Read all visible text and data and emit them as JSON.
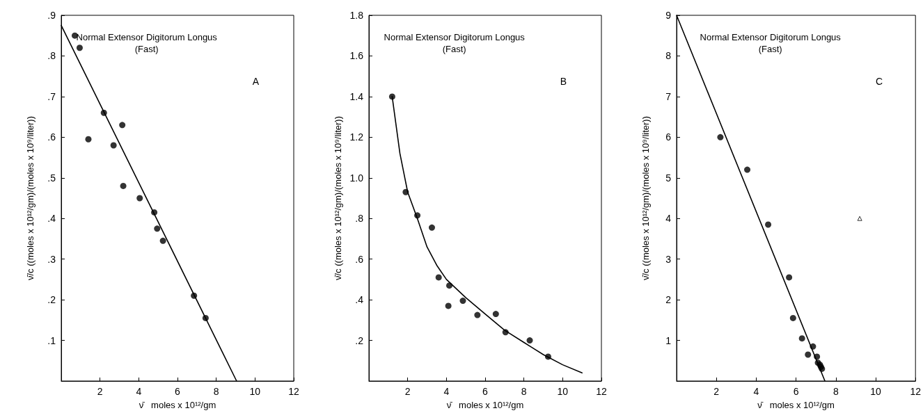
{
  "chart_data": [
    {
      "type": "scatter",
      "title": "Normal Extensor Digitorum Longus",
      "subtitle": "(Fast)",
      "annotations": [
        "A"
      ],
      "xlabel": "ν̄   moles x 10¹²/gm",
      "ylabel": "ν̄/c ((moles x 10¹²/gm)/(moles x 10⁹/liter))",
      "xlim": [
        0,
        12
      ],
      "ylim": [
        0,
        0.9
      ],
      "xticks": [
        2,
        4,
        6,
        8,
        10,
        12
      ],
      "yticks": [
        {
          "value": 0.1,
          "label": ".1"
        },
        {
          "value": 0.2,
          "label": ".2"
        },
        {
          "value": 0.3,
          "label": ".3"
        },
        {
          "value": 0.4,
          "label": ".4"
        },
        {
          "value": 0.5,
          "label": ".5"
        },
        {
          "value": 0.6,
          "label": ".6"
        },
        {
          "value": 0.7,
          "label": ".7"
        },
        {
          "value": 0.8,
          "label": ".8"
        },
        {
          "value": 0.9,
          "label": ".9"
        }
      ],
      "grid": false,
      "marker": "circle",
      "series": [
        {
          "color": "#000000",
          "x": [
            0.7,
            0.95,
            1.4,
            2.2,
            2.7,
            3.15,
            3.2,
            4.05,
            4.8,
            4.95,
            5.25,
            6.85,
            7.45
          ],
          "values": [
            0.85,
            0.82,
            0.595,
            0.66,
            0.58,
            0.63,
            0.48,
            0.45,
            0.415,
            0.375,
            0.345,
            0.21,
            0.155
          ]
        },
        {
          "type": "line",
          "color": "#000000",
          "marker": "none",
          "line_style": "solid",
          "x": [
            0,
            9.05
          ],
          "values": [
            0.875,
            0
          ]
        }
      ]
    },
    {
      "type": "scatter",
      "title": "Normal Extensor Digitorum Longus",
      "subtitle": "(Fast)",
      "annotations": [
        "B"
      ],
      "xlabel": "ν̄   moles x 10¹²/gm",
      "ylabel": "ν̄/c ((moles x 10¹²/gm)/(moles x 10⁹/liter))",
      "xlim": [
        0,
        12
      ],
      "ylim": [
        0,
        1.8
      ],
      "xticks": [
        2,
        4,
        6,
        8,
        10,
        12
      ],
      "yticks": [
        {
          "value": 0.2,
          "label": ".2"
        },
        {
          "value": 0.4,
          "label": ".4"
        },
        {
          "value": 0.6,
          "label": ".6"
        },
        {
          "value": 0.8,
          "label": ".8"
        },
        {
          "value": 1,
          "label": "1.0"
        },
        1.2,
        1.4,
        1.6,
        1.8
      ],
      "grid": false,
      "marker": "circle",
      "series": [
        {
          "color": "#000000",
          "x": [
            1.2,
            1.9,
            2.5,
            3.25,
            3.6,
            4.1,
            4.15,
            4.85,
            5.6,
            6.55,
            7.05,
            8.3,
            9.25
          ],
          "values": [
            1.4,
            0.93,
            0.815,
            0.755,
            0.51,
            0.37,
            0.47,
            0.395,
            0.325,
            0.33,
            0.24,
            0.2,
            0.12
          ]
        },
        {
          "type": "line",
          "color": "#000000",
          "marker": "none",
          "line_style": "solid",
          "x": [
            1.2,
            1.6,
            2,
            2.5,
            3,
            3.5,
            4,
            5,
            6,
            7,
            8,
            9,
            10,
            11
          ],
          "values": [
            1.4,
            1.12,
            0.93,
            0.8,
            0.66,
            0.57,
            0.5,
            0.41,
            0.33,
            0.25,
            0.19,
            0.13,
            0.08,
            0.04
          ]
        }
      ]
    },
    {
      "type": "scatter",
      "title": "Normal Extensor Digitorum Longus",
      "subtitle": "(Fast)",
      "annotations": [
        "C"
      ],
      "xlabel": "ν̄   moles x 10¹²/gm",
      "ylabel": "ν̄/c ((moles x 10¹²/gm)/(moles x 10⁹/liter))",
      "xlim": [
        0,
        12
      ],
      "ylim": [
        0,
        9
      ],
      "xticks": [
        2,
        4,
        6,
        8,
        10,
        12
      ],
      "yticks": [
        1,
        2,
        3,
        4,
        5,
        6,
        7,
        8,
        9
      ],
      "grid": false,
      "marker": "circle",
      "series": [
        {
          "color": "#000000",
          "x": [
            2.2,
            3.55,
            4.6,
            5.65,
            5.85,
            6.3,
            6.85,
            6.6,
            7.05,
            7.1,
            7.2,
            7.25,
            7.3
          ],
          "values": [
            6.0,
            5.2,
            3.85,
            2.55,
            1.55,
            1.05,
            0.85,
            0.65,
            0.6,
            0.45,
            0.4,
            0.35,
            0.3
          ]
        },
        {
          "color": "#000000",
          "marker": "triangle",
          "x": [
            9.2
          ],
          "values": [
            4.0
          ]
        },
        {
          "type": "line",
          "color": "#000000",
          "marker": "none",
          "line_style": "solid",
          "x": [
            0,
            7.45
          ],
          "values": [
            9,
            0
          ]
        }
      ]
    }
  ]
}
